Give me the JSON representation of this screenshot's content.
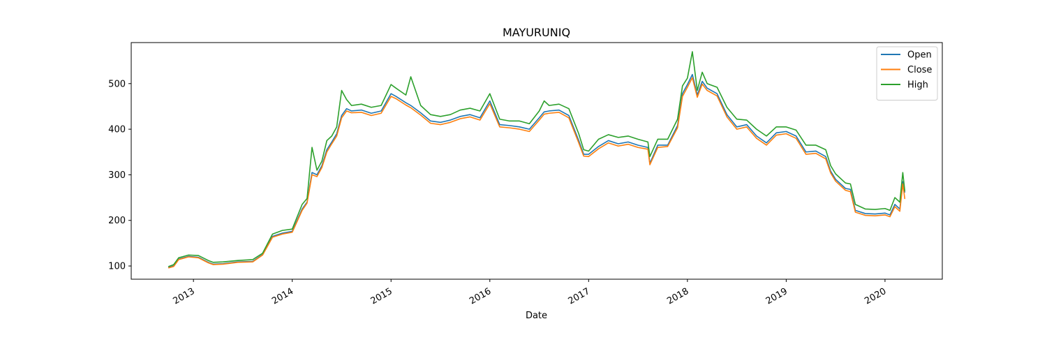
{
  "chart_data": {
    "type": "line",
    "title": "MAYURUNIQ",
    "xlabel": "Date",
    "ylabel": "",
    "x_tick_labels": [
      "2013",
      "2014",
      "2015",
      "2016",
      "2017",
      "2018",
      "2019",
      "2020"
    ],
    "x_tick_values": [
      2013.0,
      2014.0,
      2015.0,
      2016.0,
      2017.0,
      2018.0,
      2019.0,
      2020.0
    ],
    "y_tick_labels": [
      "100",
      "200",
      "300",
      "400",
      "500"
    ],
    "y_tick_values": [
      100,
      200,
      300,
      400,
      500
    ],
    "xlim": [
      2012.37,
      2020.58
    ],
    "ylim": [
      71,
      590
    ],
    "legend_position": "top-right",
    "grid": false,
    "x": [
      2012.75,
      2012.8,
      2012.85,
      2012.9,
      2012.95,
      2013.05,
      2013.15,
      2013.2,
      2013.3,
      2013.45,
      2013.6,
      2013.7,
      2013.8,
      2013.9,
      2014.0,
      2014.1,
      2014.15,
      2014.2,
      2014.25,
      2014.3,
      2014.35,
      2014.4,
      2014.45,
      2014.5,
      2014.55,
      2014.6,
      2014.7,
      2014.8,
      2014.9,
      2015.0,
      2015.05,
      2015.15,
      2015.2,
      2015.3,
      2015.4,
      2015.5,
      2015.6,
      2015.7,
      2015.8,
      2015.9,
      2016.0,
      2016.1,
      2016.2,
      2016.3,
      2016.4,
      2016.5,
      2016.55,
      2016.6,
      2016.7,
      2016.8,
      2016.9,
      2016.95,
      2017.0,
      2017.1,
      2017.2,
      2017.3,
      2017.4,
      2017.5,
      2017.6,
      2017.62,
      2017.7,
      2017.8,
      2017.9,
      2017.95,
      2018.0,
      2018.05,
      2018.1,
      2018.15,
      2018.2,
      2018.3,
      2018.4,
      2018.5,
      2018.6,
      2018.7,
      2018.8,
      2018.9,
      2019.0,
      2019.1,
      2019.2,
      2019.3,
      2019.4,
      2019.45,
      2019.5,
      2019.6,
      2019.65,
      2019.7,
      2019.8,
      2019.9,
      2020.0,
      2020.05,
      2020.1,
      2020.15,
      2020.18,
      2020.2
    ],
    "series": [
      {
        "name": "Open",
        "color": "#1f77b4",
        "values": [
          97,
          100,
          115,
          118,
          121,
          119,
          108,
          104,
          105,
          109,
          110,
          125,
          165,
          172,
          176,
          225,
          240,
          305,
          300,
          320,
          355,
          372,
          390,
          430,
          445,
          440,
          442,
          435,
          440,
          478,
          472,
          458,
          452,
          436,
          418,
          415,
          420,
          428,
          432,
          425,
          462,
          410,
          408,
          405,
          400,
          425,
          438,
          440,
          442,
          430,
          375,
          345,
          345,
          362,
          375,
          368,
          372,
          365,
          360,
          325,
          365,
          365,
          408,
          478,
          498,
          520,
          475,
          505,
          490,
          478,
          432,
          405,
          410,
          385,
          370,
          392,
          395,
          385,
          350,
          352,
          340,
          308,
          290,
          270,
          268,
          222,
          215,
          214,
          216,
          212,
          235,
          225,
          285,
          262
        ]
      },
      {
        "name": "Close",
        "color": "#ff7f0e",
        "values": [
          96,
          99,
          114,
          117,
          120,
          118,
          107,
          103,
          104,
          108,
          109,
          124,
          163,
          170,
          174,
          222,
          238,
          300,
          296,
          316,
          350,
          368,
          385,
          425,
          440,
          436,
          437,
          430,
          435,
          472,
          467,
          453,
          447,
          431,
          413,
          410,
          415,
          423,
          427,
          420,
          456,
          405,
          403,
          400,
          395,
          420,
          433,
          435,
          437,
          425,
          370,
          341,
          340,
          357,
          370,
          363,
          367,
          360,
          356,
          322,
          360,
          362,
          403,
          472,
          492,
          513,
          470,
          499,
          485,
          473,
          427,
          400,
          405,
          380,
          365,
          387,
          390,
          380,
          345,
          347,
          335,
          304,
          286,
          266,
          263,
          218,
          211,
          210,
          212,
          208,
          230,
          220,
          280,
          248
        ]
      },
      {
        "name": "High",
        "color": "#2ca02c",
        "values": [
          99,
          103,
          118,
          121,
          124,
          123,
          112,
          108,
          109,
          112,
          114,
          128,
          170,
          178,
          181,
          235,
          248,
          360,
          310,
          330,
          375,
          385,
          405,
          485,
          465,
          452,
          455,
          448,
          452,
          498,
          490,
          475,
          515,
          452,
          432,
          428,
          432,
          442,
          446,
          440,
          478,
          422,
          418,
          418,
          412,
          440,
          462,
          452,
          455,
          445,
          390,
          355,
          352,
          378,
          388,
          382,
          385,
          378,
          372,
          340,
          378,
          378,
          422,
          495,
          512,
          570,
          485,
          525,
          500,
          492,
          448,
          422,
          420,
          400,
          385,
          405,
          405,
          398,
          365,
          365,
          355,
          320,
          302,
          282,
          280,
          235,
          225,
          224,
          226,
          222,
          250,
          240,
          305,
          265
        ]
      }
    ]
  }
}
